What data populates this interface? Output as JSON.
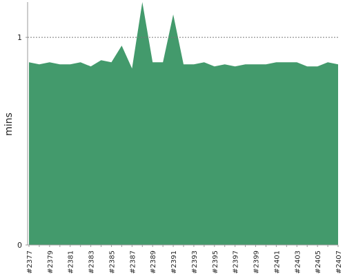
{
  "chart_data": {
    "type": "area",
    "y_label": "mins",
    "categories": [
      "#2377",
      null,
      "#2379",
      null,
      "#2381",
      null,
      "#2383",
      null,
      "#2385",
      null,
      "#2387",
      null,
      "#2389",
      null,
      "#2391",
      null,
      "#2393",
      null,
      "#2395",
      null,
      "#2397",
      null,
      "#2399",
      null,
      "#2401",
      null,
      "#2403",
      null,
      "#2405",
      null,
      "#2407"
    ],
    "values": [
      0.88,
      0.87,
      0.88,
      0.87,
      0.87,
      0.88,
      0.86,
      0.89,
      0.88,
      0.96,
      0.85,
      1.17,
      0.88,
      0.88,
      1.11,
      0.87,
      0.87,
      0.88,
      0.86,
      0.87,
      0.86,
      0.87,
      0.87,
      0.87,
      0.88,
      0.88,
      0.88,
      0.86,
      0.86,
      0.88,
      0.87
    ],
    "color": "#439a6c",
    "ylim": [
      0,
      1.17
    ],
    "yticks": [
      0,
      1
    ],
    "grid": true
  }
}
